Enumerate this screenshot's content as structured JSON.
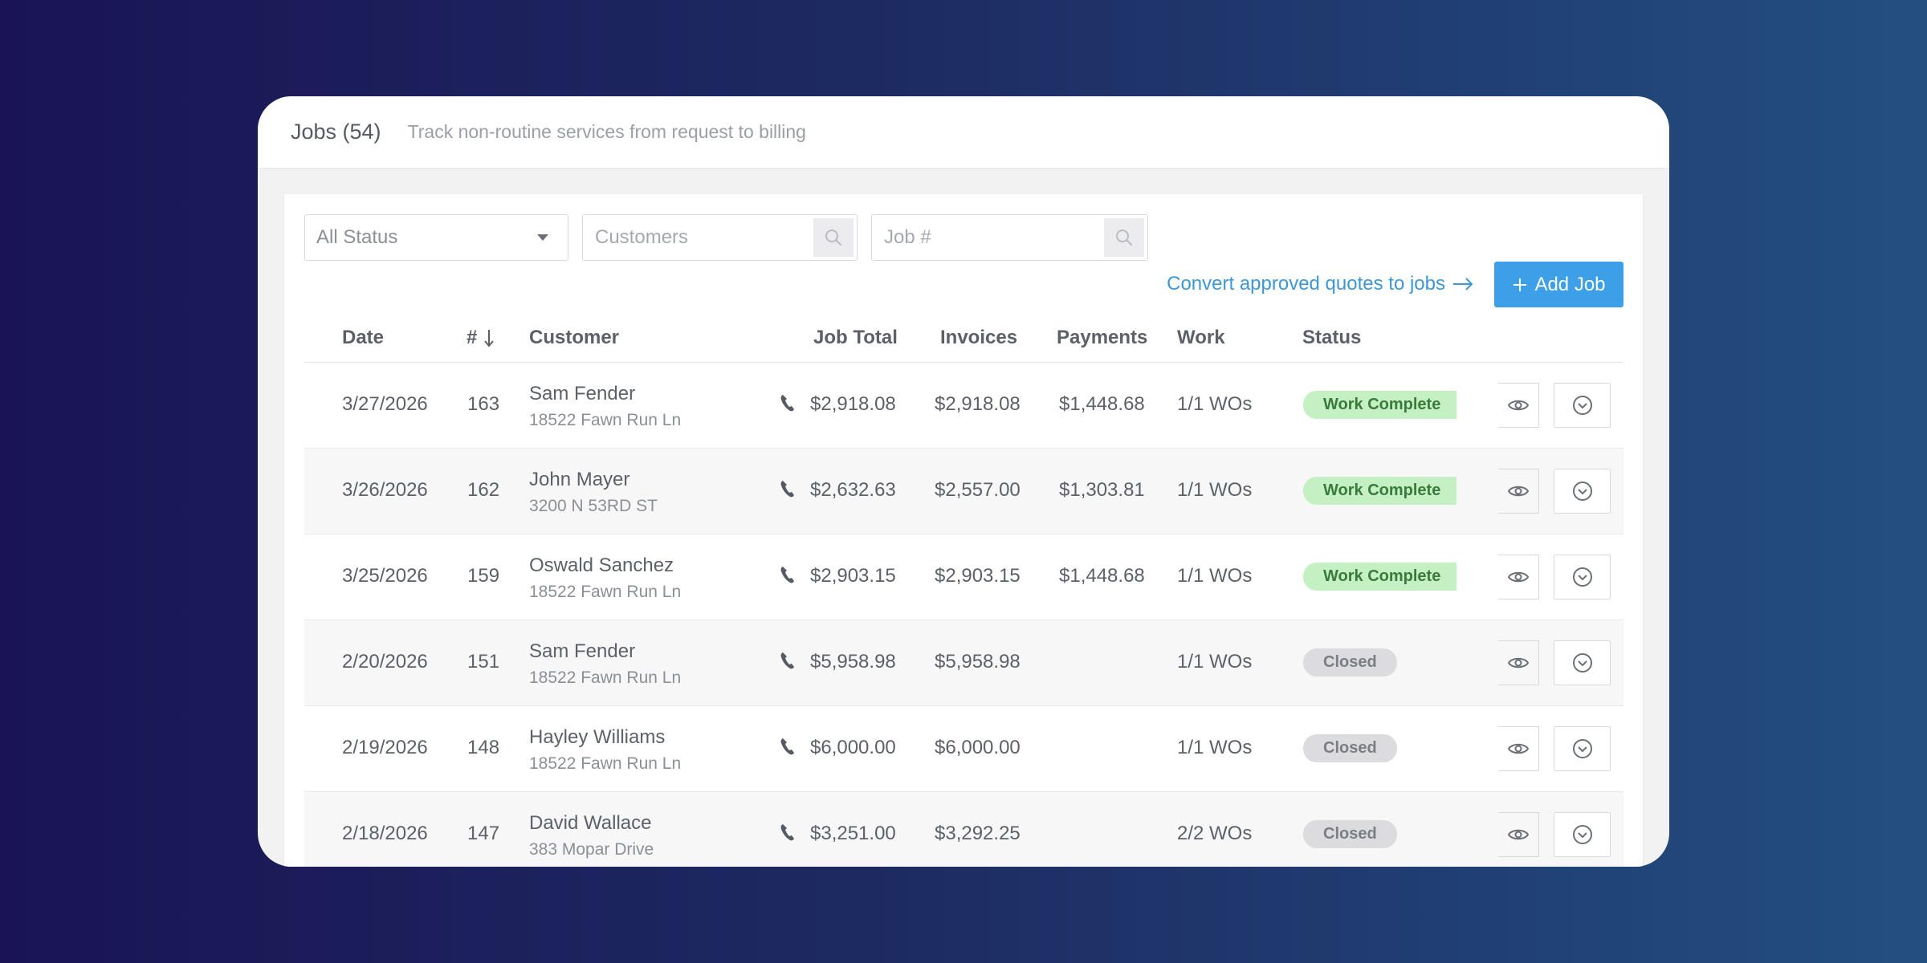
{
  "header": {
    "title": "Jobs (54)",
    "subtitle": "Track non-routine services from request to billing"
  },
  "filters": {
    "status_select": "All Status",
    "customers_placeholder": "Customers",
    "job_placeholder": "Job #"
  },
  "actions": {
    "convert_link": "Convert approved quotes to jobs",
    "add_job_label": "Add Job"
  },
  "columns": {
    "date": "Date",
    "number": "#",
    "customer": "Customer",
    "job_total": "Job Total",
    "invoices": "Invoices",
    "payments": "Payments",
    "work": "Work",
    "status": "Status"
  },
  "rows": [
    {
      "date": "3/27/2026",
      "number": "163",
      "name": "Sam Fender",
      "address": "18522 Fawn Run Ln",
      "job_total": "$2,918.08",
      "invoices": "$2,918.08",
      "payments": "$1,448.68",
      "work": "1/1 WOs",
      "status": "Work Complete",
      "status_kind": "complete"
    },
    {
      "date": "3/26/2026",
      "number": "162",
      "name": "John Mayer",
      "address": "3200 N 53RD ST",
      "job_total": "$2,632.63",
      "invoices": "$2,557.00",
      "payments": "$1,303.81",
      "work": "1/1 WOs",
      "status": "Work Complete",
      "status_kind": "complete"
    },
    {
      "date": "3/25/2026",
      "number": "159",
      "name": "Oswald Sanchez",
      "address": "18522 Fawn Run Ln",
      "job_total": "$2,903.15",
      "invoices": "$2,903.15",
      "payments": "$1,448.68",
      "work": "1/1 WOs",
      "status": "Work Complete",
      "status_kind": "complete"
    },
    {
      "date": "2/20/2026",
      "number": "151",
      "name": "Sam Fender",
      "address": "18522 Fawn Run Ln",
      "job_total": "$5,958.98",
      "invoices": "$5,958.98",
      "payments": "",
      "work": "1/1 WOs",
      "status": "Closed",
      "status_kind": "closed"
    },
    {
      "date": "2/19/2026",
      "number": "148",
      "name": "Hayley Williams",
      "address": "18522 Fawn Run Ln",
      "job_total": "$6,000.00",
      "invoices": "$6,000.00",
      "payments": "",
      "work": "1/1 WOs",
      "status": "Closed",
      "status_kind": "closed"
    },
    {
      "date": "2/18/2026",
      "number": "147",
      "name": "David Wallace",
      "address": "383 Mopar Drive",
      "job_total": "$3,251.00",
      "invoices": "$3,292.25",
      "payments": "",
      "work": "2/2 WOs",
      "status": "Closed",
      "status_kind": "closed"
    }
  ],
  "icons": {
    "sort": "arrow-down-icon",
    "search": "search-icon",
    "phone": "phone-icon",
    "view": "eye-icon",
    "menu": "chevron-down-circle-icon"
  },
  "colors": {
    "accent": "#3d9fe8",
    "link": "#3d97d6",
    "complete_bg": "#c4f0c4",
    "complete_text": "#3a7a3c",
    "closed_bg": "#dcdcde"
  }
}
